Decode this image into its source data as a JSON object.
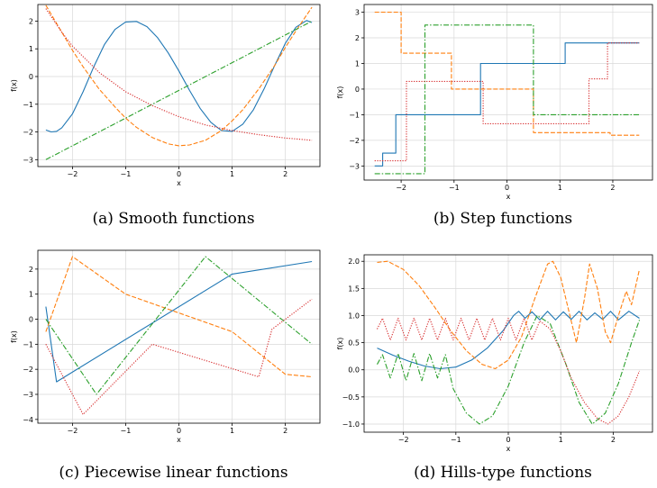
{
  "colors": {
    "blue": "#1f77b4",
    "orange": "#ff7f0e",
    "green": "#2ca02c",
    "red": "#d62728"
  },
  "chart_data": [
    {
      "type": "line",
      "caption": "(a) Smooth functions",
      "xlabel": "x",
      "ylabel": "f(x)",
      "xlim": [
        -2.65,
        2.65
      ],
      "ylim": [
        -3.25,
        2.6
      ],
      "xticks": [
        -2,
        -1,
        0,
        1,
        2
      ],
      "xticklabels": [
        "−2",
        "−1",
        "0",
        "1",
        "2"
      ],
      "yticks": [
        -3,
        -2,
        -1,
        0,
        1,
        2
      ],
      "yticklabels": [
        "−3",
        "−2",
        "−1",
        "0",
        "1",
        "2"
      ],
      "grid": true,
      "series": [
        {
          "style": "solid",
          "color": "blue",
          "points": [
            [
              -2.5,
              -1.93
            ],
            [
              -2.4,
              -2.0
            ],
            [
              -2.3,
              -1.98
            ],
            [
              -2.2,
              -1.85
            ],
            [
              -2.0,
              -1.35
            ],
            [
              -1.8,
              -0.55
            ],
            [
              -1.6,
              0.35
            ],
            [
              -1.4,
              1.15
            ],
            [
              -1.2,
              1.7
            ],
            [
              -1.0,
              1.97
            ],
            [
              -0.8,
              1.99
            ],
            [
              -0.6,
              1.8
            ],
            [
              -0.4,
              1.4
            ],
            [
              -0.2,
              0.85
            ],
            [
              0.0,
              0.2
            ],
            [
              0.2,
              -0.5
            ],
            [
              0.4,
              -1.15
            ],
            [
              0.6,
              -1.65
            ],
            [
              0.8,
              -1.95
            ],
            [
              1.0,
              -1.98
            ],
            [
              1.2,
              -1.72
            ],
            [
              1.4,
              -1.2
            ],
            [
              1.6,
              -0.45
            ],
            [
              1.8,
              0.4
            ],
            [
              2.0,
              1.2
            ],
            [
              2.2,
              1.78
            ],
            [
              2.4,
              2.02
            ],
            [
              2.5,
              1.95
            ]
          ]
        },
        {
          "style": "dashed",
          "color": "orange",
          "points": [
            [
              -2.5,
              2.57
            ],
            [
              -2.2,
              1.6
            ],
            [
              -2.0,
              0.95
            ],
            [
              -1.8,
              0.35
            ],
            [
              -1.5,
              -0.45
            ],
            [
              -1.2,
              -1.1
            ],
            [
              -1.0,
              -1.5
            ],
            [
              -0.8,
              -1.83
            ],
            [
              -0.5,
              -2.2
            ],
            [
              -0.2,
              -2.43
            ],
            [
              0.0,
              -2.5
            ],
            [
              0.2,
              -2.47
            ],
            [
              0.5,
              -2.3
            ],
            [
              0.8,
              -1.95
            ],
            [
              1.0,
              -1.6
            ],
            [
              1.2,
              -1.2
            ],
            [
              1.5,
              -0.45
            ],
            [
              1.8,
              0.4
            ],
            [
              2.0,
              1.05
            ],
            [
              2.2,
              1.65
            ],
            [
              2.5,
              2.5
            ]
          ]
        },
        {
          "style": "dashdot",
          "color": "green",
          "points": [
            [
              -2.5,
              -3.0
            ],
            [
              2.5,
              2.0
            ]
          ]
        },
        {
          "style": "dotted",
          "color": "red",
          "points": [
            [
              -2.5,
              2.45
            ],
            [
              -2.2,
              1.6
            ],
            [
              -2.0,
              1.1
            ],
            [
              -1.5,
              0.15
            ],
            [
              -1.0,
              -0.55
            ],
            [
              -0.5,
              -1.05
            ],
            [
              0.0,
              -1.45
            ],
            [
              0.5,
              -1.75
            ],
            [
              1.0,
              -1.95
            ],
            [
              1.5,
              -2.1
            ],
            [
              2.0,
              -2.22
            ],
            [
              2.5,
              -2.3
            ]
          ]
        }
      ]
    },
    {
      "type": "line",
      "caption": "(b) Step functions",
      "xlabel": "x",
      "ylabel": "f(x)",
      "xlim": [
        -2.7,
        2.75
      ],
      "ylim": [
        -3.55,
        3.3
      ],
      "xticks": [
        -2,
        -1,
        0,
        1,
        2
      ],
      "xticklabels": [
        "−2",
        "−1",
        "0",
        "1",
        "2"
      ],
      "yticks": [
        -3,
        -2,
        -1,
        0,
        1,
        2,
        3
      ],
      "yticklabels": [
        "−3",
        "−2",
        "−1",
        "0",
        "1",
        "2",
        "3"
      ],
      "grid": true,
      "series": [
        {
          "style": "solid",
          "color": "blue",
          "points": [
            [
              -2.5,
              -3.0
            ],
            [
              -2.35,
              -3.0
            ],
            [
              -2.35,
              -2.5
            ],
            [
              -2.1,
              -2.5
            ],
            [
              -2.1,
              -1.0
            ],
            [
              -0.5,
              -1.0
            ],
            [
              -0.5,
              1.0
            ],
            [
              1.1,
              1.0
            ],
            [
              1.1,
              1.8
            ],
            [
              2.5,
              1.8
            ]
          ]
        },
        {
          "style": "dashed",
          "color": "orange",
          "points": [
            [
              -2.5,
              3.0
            ],
            [
              -2.0,
              3.0
            ],
            [
              -2.0,
              1.4
            ],
            [
              -1.05,
              1.4
            ],
            [
              -1.05,
              0.0
            ],
            [
              0.5,
              0.0
            ],
            [
              0.5,
              -1.7
            ],
            [
              1.95,
              -1.7
            ],
            [
              1.95,
              -1.8
            ],
            [
              2.5,
              -1.8
            ]
          ]
        },
        {
          "style": "dashdot",
          "color": "green",
          "points": [
            [
              -2.5,
              -3.3
            ],
            [
              -1.55,
              -3.3
            ],
            [
              -1.55,
              2.5
            ],
            [
              0.5,
              2.5
            ],
            [
              0.5,
              -1.0
            ],
            [
              2.5,
              -1.0
            ]
          ]
        },
        {
          "style": "dotted",
          "color": "red",
          "points": [
            [
              -2.5,
              -2.8
            ],
            [
              -1.9,
              -2.8
            ],
            [
              -1.9,
              0.3
            ],
            [
              -0.45,
              0.3
            ],
            [
              -0.45,
              -1.35
            ],
            [
              1.55,
              -1.35
            ],
            [
              1.55,
              0.4
            ],
            [
              1.9,
              0.4
            ],
            [
              1.9,
              1.8
            ],
            [
              2.5,
              1.8
            ]
          ]
        }
      ]
    },
    {
      "type": "line",
      "caption": "(c) Piecewise linear functions",
      "xlabel": "x",
      "ylabel": "f(x)",
      "xlim": [
        -2.65,
        2.65
      ],
      "ylim": [
        -4.15,
        2.75
      ],
      "xticks": [
        -2,
        -1,
        0,
        1,
        2
      ],
      "xticklabels": [
        "−2",
        "−1",
        "0",
        "1",
        "2"
      ],
      "yticks": [
        -4,
        -3,
        -2,
        -1,
        0,
        1,
        2
      ],
      "yticklabels": [
        "−4",
        "−3",
        "−2",
        "−1",
        "0",
        "1",
        "2"
      ],
      "grid": true,
      "series": [
        {
          "style": "solid",
          "color": "blue",
          "points": [
            [
              -2.5,
              0.5
            ],
            [
              -2.3,
              -2.5
            ],
            [
              1.0,
              1.8
            ],
            [
              2.5,
              2.3
            ]
          ]
        },
        {
          "style": "dashed",
          "color": "orange",
          "points": [
            [
              -2.5,
              -0.5
            ],
            [
              -2.0,
              2.5
            ],
            [
              -1.0,
              1.0
            ],
            [
              1.0,
              -0.5
            ],
            [
              2.0,
              -2.2
            ],
            [
              2.5,
              -2.3
            ]
          ]
        },
        {
          "style": "dashdot",
          "color": "green",
          "points": [
            [
              -2.5,
              0.0
            ],
            [
              -1.55,
              -3.0
            ],
            [
              0.5,
              2.5
            ],
            [
              2.5,
              -1.0
            ]
          ]
        },
        {
          "style": "dotted",
          "color": "red",
          "points": [
            [
              -2.5,
              -1.0
            ],
            [
              -1.8,
              -3.8
            ],
            [
              -0.5,
              -1.0
            ],
            [
              1.5,
              -2.3
            ],
            [
              1.75,
              -0.4
            ],
            [
              2.5,
              0.8
            ]
          ]
        }
      ]
    },
    {
      "type": "line",
      "caption": "(d) Hills-type functions",
      "xlabel": "x",
      "ylabel": "f(x)",
      "xlim": [
        -2.75,
        2.75
      ],
      "ylim": [
        -1.15,
        2.12
      ],
      "xticks": [
        -2,
        -1,
        0,
        1,
        2
      ],
      "xticklabels": [
        "−2",
        "−1",
        "0",
        "1",
        "2"
      ],
      "yticks": [
        -1.0,
        -0.5,
        0.0,
        0.5,
        1.0,
        1.5,
        2.0
      ],
      "yticklabels": [
        "−1.0",
        "−0.5",
        "0.0",
        "0.5",
        "1.0",
        "1.5",
        "2.0"
      ],
      "grid": true,
      "series": [
        {
          "style": "solid",
          "color": "blue",
          "points": [
            [
              -2.5,
              0.4
            ],
            [
              -2.2,
              0.27
            ],
            [
              -1.9,
              0.16
            ],
            [
              -1.6,
              0.07
            ],
            [
              -1.3,
              0.02
            ],
            [
              -1.0,
              0.05
            ],
            [
              -0.7,
              0.18
            ],
            [
              -0.4,
              0.4
            ],
            [
              -0.1,
              0.72
            ],
            [
              0.1,
              1.0
            ],
            [
              0.2,
              1.08
            ],
            [
              0.32,
              0.95
            ],
            [
              0.45,
              1.07
            ],
            [
              0.6,
              0.92
            ],
            [
              0.75,
              1.08
            ],
            [
              0.9,
              0.92
            ],
            [
              1.05,
              1.07
            ],
            [
              1.2,
              0.93
            ],
            [
              1.35,
              1.08
            ],
            [
              1.5,
              0.92
            ],
            [
              1.65,
              1.05
            ],
            [
              1.8,
              0.93
            ],
            [
              1.95,
              1.08
            ],
            [
              2.1,
              0.92
            ],
            [
              2.3,
              1.08
            ],
            [
              2.5,
              0.95
            ]
          ]
        },
        {
          "style": "dashed",
          "color": "orange",
          "points": [
            [
              -2.5,
              1.98
            ],
            [
              -2.3,
              2.0
            ],
            [
              -2.0,
              1.85
            ],
            [
              -1.7,
              1.55
            ],
            [
              -1.4,
              1.15
            ],
            [
              -1.1,
              0.72
            ],
            [
              -0.8,
              0.35
            ],
            [
              -0.5,
              0.1
            ],
            [
              -0.25,
              0.02
            ],
            [
              0.0,
              0.18
            ],
            [
              0.25,
              0.6
            ],
            [
              0.5,
              1.3
            ],
            [
              0.75,
              1.95
            ],
            [
              0.85,
              2.0
            ],
            [
              1.0,
              1.7
            ],
            [
              1.15,
              1.1
            ],
            [
              1.3,
              0.5
            ],
            [
              1.45,
              1.3
            ],
            [
              1.55,
              1.95
            ],
            [
              1.7,
              1.5
            ],
            [
              1.85,
              0.7
            ],
            [
              1.95,
              0.5
            ],
            [
              2.1,
              1.0
            ],
            [
              2.25,
              1.45
            ],
            [
              2.35,
              1.2
            ],
            [
              2.5,
              1.85
            ]
          ]
        },
        {
          "style": "dashdot",
          "color": "green",
          "points": [
            [
              -2.5,
              0.1
            ],
            [
              -2.4,
              0.28
            ],
            [
              -2.25,
              -0.15
            ],
            [
              -2.1,
              0.3
            ],
            [
              -1.95,
              -0.2
            ],
            [
              -1.8,
              0.3
            ],
            [
              -1.65,
              -0.2
            ],
            [
              -1.5,
              0.3
            ],
            [
              -1.35,
              -0.15
            ],
            [
              -1.2,
              0.28
            ],
            [
              -1.05,
              -0.35
            ],
            [
              -0.8,
              -0.8
            ],
            [
              -0.55,
              -1.0
            ],
            [
              -0.3,
              -0.85
            ],
            [
              0.0,
              -0.3
            ],
            [
              0.3,
              0.5
            ],
            [
              0.55,
              1.0
            ],
            [
              0.8,
              0.85
            ],
            [
              1.1,
              0.1
            ],
            [
              1.35,
              -0.6
            ],
            [
              1.6,
              -1.0
            ],
            [
              1.85,
              -0.8
            ],
            [
              2.1,
              -0.25
            ],
            [
              2.35,
              0.5
            ],
            [
              2.5,
              0.92
            ]
          ]
        },
        {
          "style": "dotted",
          "color": "red",
          "points": [
            [
              -2.5,
              0.75
            ],
            [
              -2.4,
              0.95
            ],
            [
              -2.25,
              0.55
            ],
            [
              -2.1,
              0.95
            ],
            [
              -1.95,
              0.55
            ],
            [
              -1.8,
              0.95
            ],
            [
              -1.65,
              0.55
            ],
            [
              -1.5,
              0.95
            ],
            [
              -1.35,
              0.55
            ],
            [
              -1.2,
              0.95
            ],
            [
              -1.05,
              0.55
            ],
            [
              -0.9,
              0.95
            ],
            [
              -0.75,
              0.55
            ],
            [
              -0.6,
              0.95
            ],
            [
              -0.45,
              0.55
            ],
            [
              -0.3,
              0.95
            ],
            [
              -0.15,
              0.55
            ],
            [
              0.0,
              0.95
            ],
            [
              0.15,
              0.55
            ],
            [
              0.3,
              0.95
            ],
            [
              0.45,
              0.55
            ],
            [
              0.6,
              0.9
            ],
            [
              0.8,
              0.75
            ],
            [
              1.0,
              0.35
            ],
            [
              1.2,
              -0.15
            ],
            [
              1.45,
              -0.6
            ],
            [
              1.7,
              -0.9
            ],
            [
              1.9,
              -1.0
            ],
            [
              2.1,
              -0.85
            ],
            [
              2.3,
              -0.5
            ],
            [
              2.5,
              -0.02
            ]
          ]
        }
      ]
    }
  ]
}
